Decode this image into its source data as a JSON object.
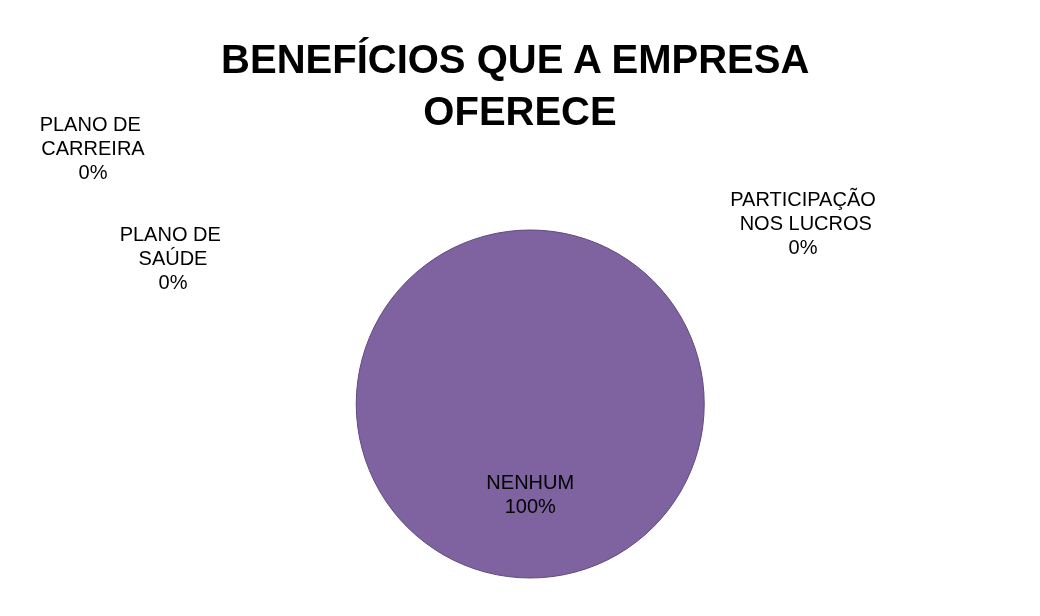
{
  "chart_data": {
    "type": "pie",
    "title": "BENEFÍCIOS QUE A EMPRESA OFERECE",
    "categories": [
      "PLANO DE SAÚDE",
      "PLANO DE CARREIRA",
      "PARTICIPAÇÃO NOS LUCROS",
      "NENHUM"
    ],
    "values": [
      0,
      0,
      0,
      100
    ],
    "colors": [
      "#4f81bd",
      "#c0504d",
      "#9bbb59",
      "#7f62a0"
    ],
    "value_labels": [
      "0%",
      "0%",
      "0%",
      "100%"
    ],
    "legend": false
  }
}
